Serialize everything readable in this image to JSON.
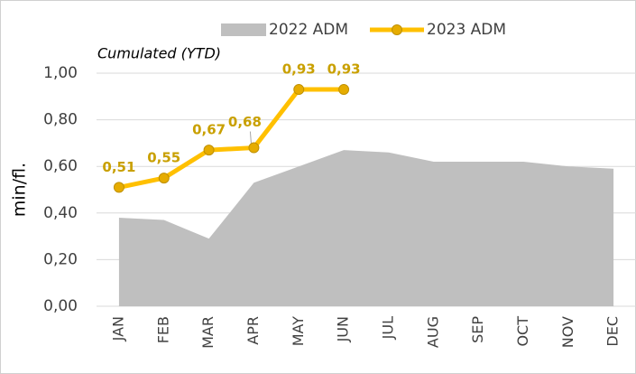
{
  "chart_data": {
    "type": "area_line",
    "subtitle": "Cumulated (YTD)",
    "y_label": "min/fl.",
    "categories": [
      "JAN",
      "FEB",
      "MAR",
      "APR",
      "MAY",
      "JUN",
      "JUL",
      "AUG",
      "SEP",
      "OCT",
      "NOV",
      "DEC"
    ],
    "series": [
      {
        "name": "2022 ADM",
        "color": "#bfbfbf",
        "values": [
          0.38,
          0.37,
          0.29,
          0.53,
          0.6,
          0.67,
          0.66,
          0.62,
          0.62,
          0.62,
          0.6,
          0.59
        ]
      },
      {
        "name": "2023 ADM",
        "color": "#ffc000",
        "values": [
          0.51,
          0.55,
          0.67,
          0.68,
          0.93,
          0.93,
          null,
          null,
          null,
          null,
          null,
          null
        ],
        "value_labels": [
          "0,51",
          "0,55",
          "0,67",
          "0,68",
          "0,93",
          "0,93",
          null,
          null,
          null,
          null,
          null,
          null
        ]
      }
    ],
    "ylim": [
      0,
      1.0
    ],
    "yticks": [
      {
        "value": 0,
        "label": "0,00"
      },
      {
        "value": 0.2,
        "label": "0,20"
      },
      {
        "value": 0.4,
        "label": "0,40"
      },
      {
        "value": 0.6,
        "label": "0,60"
      },
      {
        "value": 0.8,
        "label": "0,80"
      },
      {
        "value": 1.0,
        "label": "1,00"
      }
    ],
    "grid": true
  }
}
